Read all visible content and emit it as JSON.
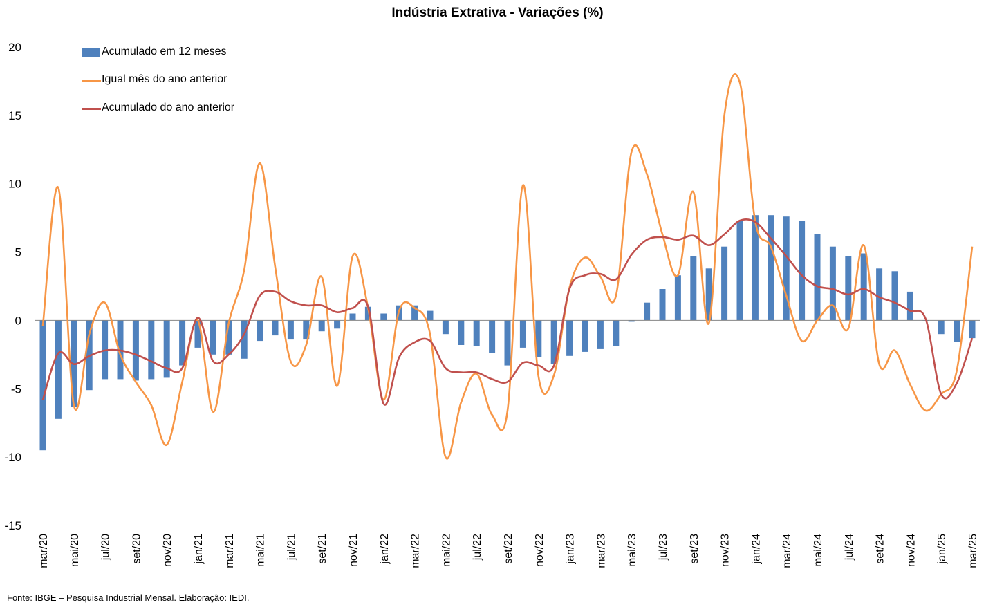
{
  "chart_data": {
    "type": "bar+line",
    "title": "Indústria Extrativa - Variações (%)",
    "ylim": [
      -15,
      20
    ],
    "yticks": [
      "20",
      "15",
      "10",
      "5",
      "0",
      "-5",
      "-10",
      "-15"
    ],
    "ytick_values": [
      20,
      15,
      10,
      5,
      0,
      -5,
      -10,
      -15
    ],
    "grid": false,
    "legend_position": "top-left",
    "categories": [
      "mar/20",
      "abr/20",
      "mai/20",
      "jun/20",
      "jul/20",
      "ago/20",
      "set/20",
      "out/20",
      "nov/20",
      "dez/20",
      "jan/21",
      "fev/21",
      "mar/21",
      "abr/21",
      "mai/21",
      "jun/21",
      "jul/21",
      "ago/21",
      "set/21",
      "out/21",
      "nov/21",
      "dez/21",
      "jan/22",
      "fev/22",
      "mar/22",
      "abr/22",
      "mai/22",
      "jun/22",
      "jul/22",
      "ago/22",
      "set/22",
      "out/22",
      "nov/22",
      "dez/22",
      "jan/23",
      "fev/23",
      "mar/23",
      "abr/23",
      "mai/23",
      "jun/23",
      "jul/23",
      "ago/23",
      "set/23",
      "out/23",
      "nov/23",
      "dez/23",
      "jan/24",
      "fev/24",
      "mar/24",
      "abr/24",
      "mai/24",
      "jun/24",
      "jul/24",
      "ago/24",
      "set/24",
      "out/24",
      "nov/24",
      "dez/24",
      "jan/25",
      "fev/25",
      "mar/25"
    ],
    "x_tick_labels": [
      "mar/20",
      "mai/20",
      "jul/20",
      "set/20",
      "nov/20",
      "jan/21",
      "mar/21",
      "mai/21",
      "jul/21",
      "set/21",
      "nov/21",
      "jan/22",
      "mar/22",
      "mai/22",
      "jul/22",
      "set/22",
      "nov/22",
      "jan/23",
      "mar/23",
      "mai/23",
      "jul/23",
      "set/23",
      "nov/23",
      "jan/24",
      "mar/24",
      "mai/24",
      "jul/24",
      "set/24",
      "nov/24",
      "jan/25",
      "mar/25"
    ],
    "series": [
      {
        "name": "Acumulado em 12 meses",
        "kind": "bar",
        "color": "#4f81bd",
        "values": [
          -9.5,
          -7.2,
          -6.3,
          -5.1,
          -4.3,
          -4.3,
          -4.4,
          -4.3,
          -4.2,
          -3.3,
          -2.0,
          -2.5,
          -2.5,
          -2.8,
          -1.5,
          -1.1,
          -1.4,
          -1.4,
          -0.8,
          -0.6,
          0.5,
          1.0,
          0.5,
          1.1,
          1.1,
          0.7,
          -1.0,
          -1.8,
          -1.9,
          -2.4,
          -3.3,
          -2.0,
          -2.7,
          -3.2,
          -2.6,
          -2.3,
          -2.1,
          -1.9,
          -0.1,
          1.3,
          2.3,
          3.3,
          4.7,
          3.8,
          5.4,
          7.3,
          7.7,
          7.7,
          7.6,
          7.3,
          6.3,
          5.4,
          4.7,
          4.9,
          3.8,
          3.6,
          2.1,
          0.0,
          -1.0,
          -1.6,
          -1.3
        ]
      },
      {
        "name": "Igual mês do ano anterior",
        "kind": "line",
        "color": "#f79646",
        "values": [
          -0.4,
          9.7,
          -6.2,
          -1.0,
          1.3,
          -2.5,
          -4.5,
          -6.2,
          -9.1,
          -4.5,
          0.0,
          -6.7,
          -0.2,
          3.7,
          11.5,
          3.9,
          -3.0,
          -1.8,
          3.2,
          -4.8,
          4.7,
          0.9,
          -5.8,
          0.7,
          0.9,
          -1.0,
          -10.0,
          -6.0,
          -3.9,
          -6.9,
          -6.6,
          9.9,
          -4.1,
          -4.0,
          2.4,
          4.6,
          3.2,
          1.8,
          12.3,
          10.7,
          6.3,
          3.3,
          9.4,
          -0.2,
          15.0,
          17.4,
          7.2,
          5.4,
          1.8,
          -1.5,
          0.0,
          1.1,
          -0.6,
          5.5,
          -3.2,
          -2.2,
          -4.7,
          -6.6,
          -5.4,
          -3.7,
          5.4
        ]
      },
      {
        "name": "Acumulado do ano anterior",
        "kind": "line",
        "color": "#c0504d",
        "values": [
          -5.8,
          -2.4,
          -3.2,
          -2.6,
          -2.2,
          -2.2,
          -2.5,
          -3.0,
          -3.5,
          -3.5,
          0.2,
          -3.0,
          -2.5,
          -1.0,
          1.8,
          2.1,
          1.4,
          1.1,
          1.1,
          0.6,
          0.9,
          1.0,
          -6.1,
          -2.7,
          -1.6,
          -1.5,
          -3.5,
          -3.8,
          -3.8,
          -4.3,
          -4.5,
          -3.1,
          -3.3,
          -3.3,
          2.3,
          3.3,
          3.4,
          3.0,
          4.8,
          5.9,
          6.1,
          5.9,
          6.2,
          5.5,
          6.3,
          7.3,
          7.2,
          6.0,
          4.7,
          3.3,
          2.5,
          2.3,
          1.9,
          2.3,
          1.7,
          1.3,
          0.7,
          0.1,
          -5.4,
          -4.6,
          -1.3
        ]
      }
    ]
  },
  "source": "Fonte: IBGE – Pesquisa Industrial Mensal. Elaboração: IEDI."
}
